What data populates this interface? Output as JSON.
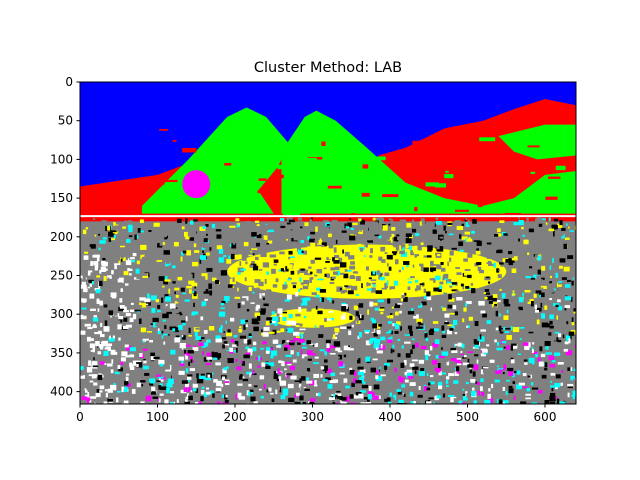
{
  "chart_data": {
    "type": "heatmap",
    "title": "Cluster Method: LAB",
    "xlabel": "",
    "ylabel": "",
    "xlim": [
      0,
      640
    ],
    "ylim": [
      416,
      0
    ],
    "xticks": [
      0,
      100,
      200,
      300,
      400,
      500,
      600
    ],
    "yticks": [
      0,
      50,
      100,
      150,
      200,
      250,
      300,
      350,
      400
    ],
    "grid": false,
    "legend": "none",
    "cluster_colors": {
      "sky": "#0000ff",
      "mountain_red": "#ff0000",
      "mountain_green": "#00ff00",
      "field_yellow": "#ffff00",
      "shadow_gray": "#808080",
      "dark_black": "#000000",
      "flowers_cyan": "#00ffff",
      "flowers_magenta": "#ff00ff",
      "highlight_white": "#ffffff"
    }
  }
}
